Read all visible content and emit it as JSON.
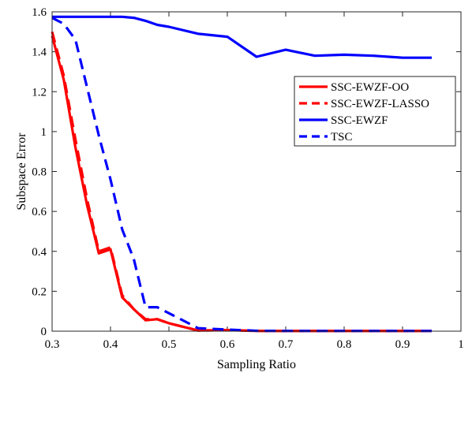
{
  "chart_data": {
    "type": "line",
    "title": "",
    "xlabel": "Sampling Ratio",
    "ylabel": "Subspace Error",
    "xlim": [
      0.3,
      1
    ],
    "ylim": [
      0,
      1.6
    ],
    "xticks": [
      0.3,
      0.4,
      0.5,
      0.6,
      0.7,
      0.8,
      0.9,
      1
    ],
    "xtick_labels": [
      "0.3",
      "0.4",
      "0.5",
      "0.6",
      "0.7",
      "0.8",
      "0.9",
      "1"
    ],
    "yticks": [
      0,
      0.2,
      0.4,
      0.6,
      0.8,
      1,
      1.2,
      1.4,
      1.6
    ],
    "ytick_labels": [
      "0",
      "0.2",
      "0.4",
      "0.6",
      "0.8",
      "1",
      "1.2",
      "1.4",
      "1.6"
    ],
    "grid": false,
    "legend_position": "upper-right",
    "series": [
      {
        "name": "SSC-EWZF-OO",
        "color": "#ff0000",
        "dash": "solid",
        "x": [
          0.3,
          0.32,
          0.34,
          0.36,
          0.38,
          0.4,
          0.42,
          0.44,
          0.46,
          0.48,
          0.5,
          0.55,
          0.6,
          0.65,
          0.7,
          0.75,
          0.8,
          0.85,
          0.9,
          0.95
        ],
        "y": [
          1.48,
          1.26,
          0.92,
          0.63,
          0.39,
          0.41,
          0.17,
          0.11,
          0.055,
          0.06,
          0.04,
          0.003,
          0.005,
          0.001,
          0.001,
          0.001,
          0.001,
          0.001,
          0.001,
          0.001
        ]
      },
      {
        "name": "SSC-EWZF-LASSO",
        "color": "#ff0000",
        "dash": "dashed",
        "x": [
          0.3,
          0.32,
          0.34,
          0.36,
          0.38,
          0.4,
          0.42,
          0.44,
          0.46,
          0.48,
          0.5,
          0.55,
          0.6,
          0.65,
          0.7,
          0.75,
          0.8,
          0.85,
          0.9,
          0.95
        ],
        "y": [
          1.5,
          1.28,
          0.96,
          0.66,
          0.4,
          0.42,
          0.18,
          0.11,
          0.06,
          0.06,
          0.04,
          0.003,
          0.005,
          0.001,
          0.001,
          0.001,
          0.001,
          0.001,
          0.001,
          0.001
        ]
      },
      {
        "name": "SSC-EWZF",
        "color": "#0000ff",
        "dash": "solid",
        "x": [
          0.3,
          0.32,
          0.34,
          0.36,
          0.38,
          0.4,
          0.42,
          0.44,
          0.46,
          0.48,
          0.5,
          0.55,
          0.6,
          0.65,
          0.7,
          0.75,
          0.8,
          0.85,
          0.9,
          0.95
        ],
        "y": [
          1.575,
          1.575,
          1.575,
          1.575,
          1.575,
          1.575,
          1.575,
          1.57,
          1.555,
          1.535,
          1.525,
          1.49,
          1.475,
          1.375,
          1.41,
          1.38,
          1.385,
          1.38,
          1.37,
          1.37
        ]
      },
      {
        "name": "TSC",
        "color": "#0000ff",
        "dash": "dashed",
        "x": [
          0.3,
          0.32,
          0.34,
          0.36,
          0.38,
          0.4,
          0.42,
          0.44,
          0.46,
          0.48,
          0.5,
          0.55,
          0.6,
          0.65,
          0.7,
          0.75,
          0.8,
          0.85,
          0.9,
          0.95
        ],
        "y": [
          1.57,
          1.54,
          1.46,
          1.22,
          0.98,
          0.76,
          0.51,
          0.36,
          0.12,
          0.12,
          0.09,
          0.015,
          0.008,
          0.002,
          0.001,
          0.001,
          0.001,
          0.001,
          0.001,
          0.001
        ]
      }
    ]
  }
}
